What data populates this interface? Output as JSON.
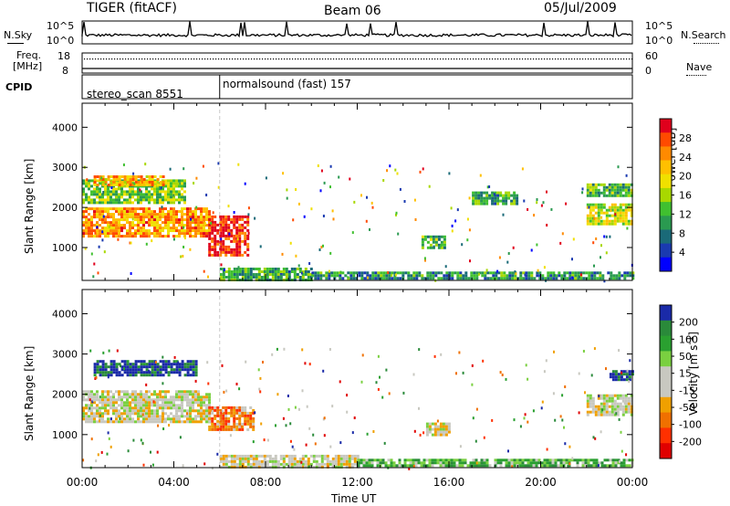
{
  "header": {
    "radar": "TIGER (fitACF)",
    "beam": "Beam 06",
    "date": "05/Jul/2009"
  },
  "strips": {
    "nsky_label": "N.Sky",
    "nsky_ticks": [
      "10^5",
      "10^0"
    ],
    "nsearch_label": "N.Search",
    "nsearch_ticks": [
      "10^5",
      "10^0"
    ],
    "freq_label_line1": "Freq.",
    "freq_label_line2": "[MHz]",
    "freq_ticks": [
      "18",
      "8"
    ],
    "nave_label": "Nave",
    "nave_ticks": [
      "60",
      "0"
    ],
    "cpid_label": "CPID",
    "cpid_entries": [
      {
        "text": "stereo_scan 8551",
        "start_hour": 0
      },
      {
        "text": "normalsound (fast) 157",
        "start_hour": 6
      }
    ]
  },
  "xaxis": {
    "label": "Time UT",
    "ticks": [
      "00:00",
      "04:00",
      "08:00",
      "12:00",
      "16:00",
      "20:00",
      "00:00"
    ]
  },
  "chart_data": [
    {
      "type": "heatmap",
      "name": "power",
      "ylabel": "Slant Range [km]",
      "yticks": [
        1000,
        2000,
        3000,
        4000
      ],
      "ylim": [
        180,
        4600
      ],
      "xlim_hours": [
        0,
        24
      ],
      "colorbar": {
        "label": "Power [dB]",
        "ticks": [
          "28",
          "24",
          "20",
          "16",
          "12",
          "8",
          "4"
        ],
        "colors": [
          "#e0001c",
          "#ff4a00",
          "#ff8a00",
          "#ffc000",
          "#f0e000",
          "#a8d800",
          "#40c030",
          "#2a9a50",
          "#1a6a78",
          "#1a3ab0",
          "#0000ff"
        ]
      },
      "echo_regions": [
        {
          "t": [
            0.0,
            5.5
          ],
          "r": [
            1300,
            2000
          ],
          "level": 0.75
        },
        {
          "t": [
            0.0,
            4.5
          ],
          "r": [
            2100,
            2700
          ],
          "level": 0.45
        },
        {
          "t": [
            0.5,
            3.5
          ],
          "r": [
            2550,
            2800
          ],
          "level": 0.7
        },
        {
          "t": [
            5.5,
            7.2
          ],
          "r": [
            800,
            1800
          ],
          "level": 0.9
        },
        {
          "t": [
            6.0,
            10.0
          ],
          "r": [
            200,
            500
          ],
          "level": 0.35
        },
        {
          "t": [
            10.0,
            24.0
          ],
          "r": [
            200,
            400
          ],
          "level": 0.3
        },
        {
          "t": [
            14.8,
            15.8
          ],
          "r": [
            1000,
            1300
          ],
          "level": 0.4
        },
        {
          "t": [
            17.0,
            19.0
          ],
          "r": [
            2100,
            2400
          ],
          "level": 0.35
        },
        {
          "t": [
            22.0,
            24.0
          ],
          "r": [
            1600,
            2100
          ],
          "level": 0.55
        },
        {
          "t": [
            22.0,
            24.0
          ],
          "r": [
            2300,
            2600
          ],
          "level": 0.4
        }
      ]
    },
    {
      "type": "heatmap",
      "name": "velocity",
      "ylabel": "Slant Range [km]",
      "yticks": [
        1000,
        2000,
        3000,
        4000
      ],
      "ylim": [
        180,
        4600
      ],
      "xlim_hours": [
        0,
        24
      ],
      "colorbar": {
        "label": "Velocity [m s^-1]",
        "ticks": [
          "200",
          "100",
          "50",
          "15",
          "-15",
          "-50",
          "-100",
          "-200"
        ],
        "colors": [
          "#1a2aa8",
          "#2a8a3a",
          "#2aa030",
          "#7ad040",
          "#c8c8c0",
          "#c8c8c0",
          "#f0a000",
          "#f07000",
          "#ff3000",
          "#e00000"
        ]
      },
      "echo_regions": [
        {
          "t": [
            0.0,
            5.5
          ],
          "r": [
            1300,
            2100
          ],
          "level": 0.5
        },
        {
          "t": [
            0.5,
            5.0
          ],
          "r": [
            2500,
            2850
          ],
          "level": 0.95
        },
        {
          "t": [
            5.5,
            7.5
          ],
          "r": [
            1100,
            1700
          ],
          "level": 0.3
        },
        {
          "t": [
            6.0,
            12.0
          ],
          "r": [
            200,
            500
          ],
          "level": 0.5
        },
        {
          "t": [
            12.0,
            24.0
          ],
          "r": [
            200,
            400
          ],
          "level": 0.7
        },
        {
          "t": [
            15.0,
            16.0
          ],
          "r": [
            1000,
            1300
          ],
          "level": 0.5
        },
        {
          "t": [
            22.0,
            24.0
          ],
          "r": [
            1500,
            2000
          ],
          "level": 0.5
        },
        {
          "t": [
            23.0,
            24.0
          ],
          "r": [
            2350,
            2600
          ],
          "level": 0.95
        }
      ]
    }
  ]
}
